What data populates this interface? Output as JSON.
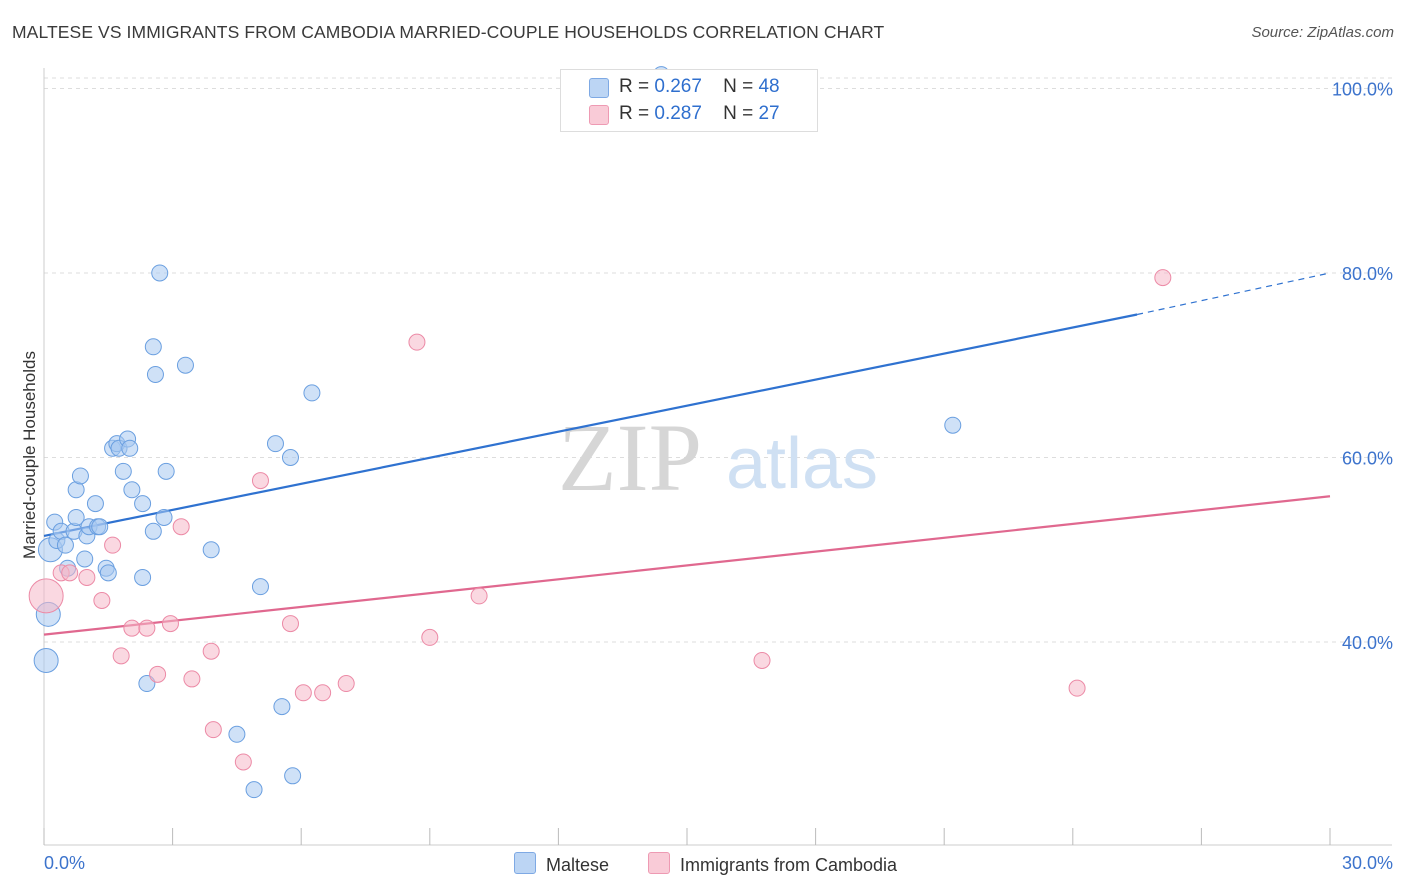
{
  "title": "MALTESE VS IMMIGRANTS FROM CAMBODIA MARRIED-COUPLE HOUSEHOLDS CORRELATION CHART",
  "source": "Source: ZipAtlas.com",
  "watermark": {
    "zip": "ZIP",
    "atlas": "atlas"
  },
  "legend": {
    "rows": [
      {
        "r_label": "R =",
        "r_value": "0.267",
        "n_label": "N =",
        "n_value": "48"
      },
      {
        "r_label": "R =",
        "r_value": "0.287",
        "n_label": "N =",
        "n_value": "27"
      }
    ]
  },
  "bottom_legend": [
    "Maltese",
    "Immigrants from Cambodia"
  ],
  "colors": {
    "maltese_fill": "#a8c8f0",
    "maltese_stroke": "#6a9fe0",
    "maltese_line": "#2f72d0",
    "cambodia_fill": "#f6b8c8",
    "cambodia_stroke": "#ec8aa6",
    "cambodia_line": "#e0688f",
    "axis_text": "#3c73cc",
    "grid": "#dddddd"
  },
  "chart_data": {
    "type": "scatter",
    "title": "MALTESE VS IMMIGRANTS FROM CAMBODIA MARRIED-COUPLE HOUSEHOLDS CORRELATION CHART",
    "xlabel": "",
    "ylabel": "Married-couple Households",
    "xlim": [
      0,
      30
    ],
    "ylim": [
      18,
      102
    ],
    "x_tick_labels": [
      "0.0%",
      "30.0%"
    ],
    "y_ticks": [
      40,
      60,
      80,
      100
    ],
    "y_tick_labels": [
      "40.0%",
      "60.0%",
      "80.0%",
      "100.0%"
    ],
    "grid": true,
    "legend_position": "top-center",
    "series": [
      {
        "name": "Maltese",
        "points": [
          [
            0.1,
            43.0
          ],
          [
            0.15,
            50.0
          ],
          [
            0.25,
            53.0
          ],
          [
            0.3,
            51.0
          ],
          [
            0.4,
            52.0
          ],
          [
            0.5,
            50.5
          ],
          [
            0.55,
            48.0
          ],
          [
            0.7,
            52.0
          ],
          [
            0.75,
            56.5
          ],
          [
            0.75,
            53.5
          ],
          [
            0.85,
            58.0
          ],
          [
            0.95,
            49.0
          ],
          [
            1.0,
            51.5
          ],
          [
            1.05,
            52.5
          ],
          [
            1.2,
            55.0
          ],
          [
            1.25,
            52.5
          ],
          [
            1.3,
            52.5
          ],
          [
            1.45,
            48.0
          ],
          [
            1.5,
            47.5
          ],
          [
            1.6,
            61.0
          ],
          [
            1.7,
            61.5
          ],
          [
            1.75,
            61.0
          ],
          [
            1.85,
            58.5
          ],
          [
            1.95,
            62.0
          ],
          [
            2.0,
            61.0
          ],
          [
            2.05,
            56.5
          ],
          [
            2.3,
            55.0
          ],
          [
            2.3,
            47.0
          ],
          [
            2.4,
            35.5
          ],
          [
            2.55,
            72.0
          ],
          [
            2.55,
            52.0
          ],
          [
            2.6,
            69.0
          ],
          [
            2.7,
            80.0
          ],
          [
            2.8,
            53.5
          ],
          [
            2.85,
            58.5
          ],
          [
            3.3,
            70.0
          ],
          [
            3.9,
            50.0
          ],
          [
            4.5,
            30.0
          ],
          [
            4.9,
            24.0
          ],
          [
            5.05,
            46.0
          ],
          [
            5.4,
            61.5
          ],
          [
            5.55,
            33.0
          ],
          [
            5.75,
            60.0
          ],
          [
            5.8,
            25.5
          ],
          [
            6.25,
            67.0
          ],
          [
            14.4,
            101.5
          ],
          [
            21.2,
            63.5
          ],
          [
            0.05,
            38.0
          ]
        ],
        "trend": {
          "x0": 0,
          "y0": 51.5,
          "x1": 25.5,
          "y1": 75.5,
          "dashed_to": 30,
          "dashed_y": 80.0
        }
      },
      {
        "name": "Immigrants from Cambodia",
        "points": [
          [
            0.05,
            45.0
          ],
          [
            0.4,
            47.5
          ],
          [
            0.6,
            47.5
          ],
          [
            1.0,
            47.0
          ],
          [
            1.35,
            44.5
          ],
          [
            1.6,
            50.5
          ],
          [
            1.8,
            38.5
          ],
          [
            2.05,
            41.5
          ],
          [
            2.4,
            41.5
          ],
          [
            2.65,
            36.5
          ],
          [
            2.95,
            42.0
          ],
          [
            3.2,
            52.5
          ],
          [
            3.45,
            36.0
          ],
          [
            3.9,
            39.0
          ],
          [
            3.95,
            30.5
          ],
          [
            4.65,
            27.0
          ],
          [
            5.05,
            57.5
          ],
          [
            5.75,
            42.0
          ],
          [
            6.05,
            34.5
          ],
          [
            6.5,
            34.5
          ],
          [
            7.05,
            35.5
          ],
          [
            8.7,
            72.5
          ],
          [
            9.0,
            40.5
          ],
          [
            10.15,
            45.0
          ],
          [
            16.75,
            38.0
          ],
          [
            24.1,
            35.0
          ],
          [
            26.1,
            79.5
          ]
        ],
        "trend": {
          "x0": 0,
          "y0": 40.8,
          "x1": 30,
          "y1": 55.8
        }
      }
    ]
  }
}
